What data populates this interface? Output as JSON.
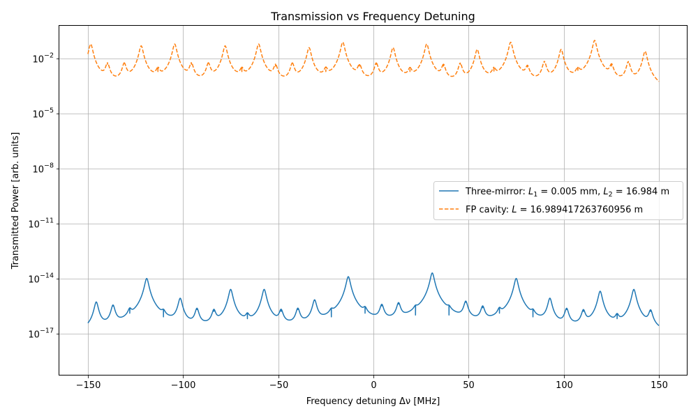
{
  "chart_data": {
    "type": "line",
    "title": "Transmission vs Frequency Detuning",
    "xlabel": "Frequency detuning Δν [MHz]",
    "ylabel": "Transmitted Power [arb. units]",
    "xlim": [
      -150,
      150
    ],
    "ylim_log10": [
      -19.3,
      -0.2
    ],
    "yscale": "log",
    "grid": true,
    "legend_position": "center-right",
    "x_ticks": [
      -150,
      -100,
      -50,
      0,
      50,
      100,
      150
    ],
    "x_tick_labels": [
      "−150",
      "−100",
      "−50",
      "0",
      "50",
      "100",
      "150"
    ],
    "y_ticks_log10": [
      -17,
      -14,
      -11,
      -8,
      -5,
      -2
    ],
    "y_tick_labels": [
      {
        "base": "10",
        "exp": "−17"
      },
      {
        "base": "10",
        "exp": "−14"
      },
      {
        "base": "10",
        "exp": "−11"
      },
      {
        "base": "10",
        "exp": "−8"
      },
      {
        "base": "10",
        "exp": "−5"
      },
      {
        "base": "10",
        "exp": "−2"
      }
    ],
    "series": [
      {
        "name": "Three-mirror: L1 = 0.005 mm, L2 = 16.984 m",
        "legend_parts": [
          "Three-mirror: ",
          "L",
          "1",
          " = 0.005 mm, ",
          "L",
          "2",
          " = 16.984 m"
        ],
        "color": "#1f77b4",
        "line_style": "solid",
        "baseline_log10": -18.3,
        "resonance_x": [
          -145.6,
          -136.8,
          -128.0,
          -119.1,
          -110.3,
          -101.5,
          -92.7,
          -83.8,
          -75.0,
          -66.2,
          -57.4,
          -48.5,
          -39.7,
          -30.9,
          -22.1,
          -13.2,
          -4.4,
          4.4,
          13.2,
          22.1,
          30.9,
          39.7,
          48.5,
          57.4,
          66.2,
          75.0,
          83.8,
          92.7,
          101.5,
          110.3,
          119.1,
          128.0,
          136.8,
          145.6
        ],
        "resonance_peak_log10": [
          -15.3,
          -15.5,
          -15.9,
          -14.0,
          -16.1,
          -15.1,
          -15.7,
          -15.8,
          -14.6,
          -16.2,
          -14.6,
          -15.8,
          -15.7,
          -15.2,
          -16.1,
          -13.9,
          -15.9,
          -15.5,
          -15.4,
          -16.0,
          -13.7,
          -16.0,
          -15.3,
          -15.6,
          -15.9,
          -14.0,
          -16.1,
          -15.1,
          -15.7,
          -15.8,
          -14.7,
          -16.2,
          -14.6,
          -15.8
        ]
      },
      {
        "name": "FP cavity: L = 16.989417263760956 m",
        "legend_parts": [
          "FP cavity: ",
          "L",
          "",
          " = 16.989417263760956 m",
          "",
          "",
          ""
        ],
        "color": "#ff7f0e",
        "line_style": "dashed",
        "baseline_log10": -5.25,
        "resonance_x": [
          -148.5,
          -139.7,
          -130.9,
          -122.0,
          -113.2,
          -104.4,
          -95.6,
          -86.7,
          -77.9,
          -69.1,
          -60.3,
          -51.4,
          -42.6,
          -33.8,
          -25.0,
          -16.1,
          -7.3,
          1.5,
          10.3,
          19.2,
          28.0,
          36.8,
          45.6,
          54.5,
          63.3,
          72.1,
          80.9,
          89.8,
          98.6,
          107.4,
          116.2,
          125.1,
          133.9,
          142.7
        ],
        "resonance_peak_log10": [
          -1.2,
          -2.3,
          -2.3,
          -1.3,
          -2.7,
          -1.2,
          -2.3,
          -2.3,
          -1.3,
          -2.7,
          -1.2,
          -2.4,
          -2.3,
          -1.4,
          -2.7,
          -1.1,
          -2.4,
          -2.3,
          -1.4,
          -2.7,
          -1.2,
          -2.4,
          -2.3,
          -1.5,
          -2.7,
          -1.1,
          -2.5,
          -2.2,
          -1.5,
          -2.7,
          -1.0,
          -2.4,
          -2.2,
          -1.6
        ]
      }
    ]
  }
}
